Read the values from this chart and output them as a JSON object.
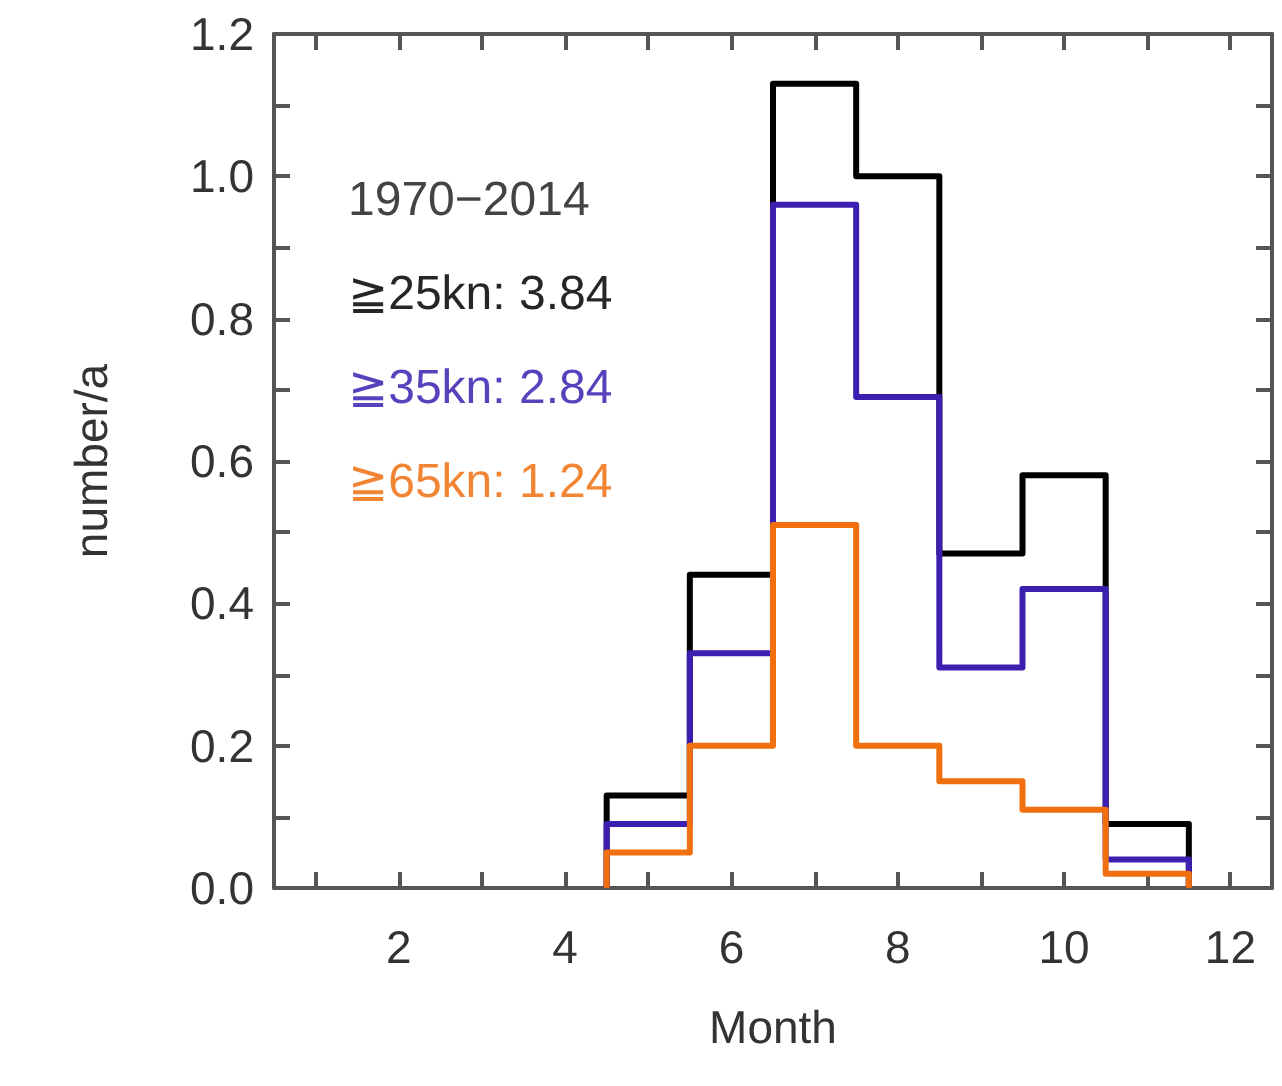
{
  "chart_data": {
    "type": "histogram",
    "xlabel": "Month",
    "ylabel": "number/a",
    "bins": [
      4.5,
      5.5,
      6.5,
      7.5,
      8.5,
      9.5,
      10.5,
      11.5
    ],
    "series": [
      {
        "name": "≧25kn: 3.84",
        "color": "#000000",
        "values": [
          0.13,
          0.44,
          1.13,
          1.0,
          0.47,
          0.58,
          0.09
        ]
      },
      {
        "name": "≧35kn: 2.84",
        "color": "#3c1fb0",
        "values": [
          0.09,
          0.33,
          0.96,
          0.69,
          0.31,
          0.42,
          0.04
        ]
      },
      {
        "name": "≧65kn: 1.24",
        "color": "#f07010",
        "values": [
          0.05,
          0.2,
          0.51,
          0.2,
          0.15,
          0.11,
          0.02
        ]
      }
    ],
    "legend": "top left",
    "legend_title": "1970−2014",
    "grid": false,
    "xlim": [
      0.5,
      12.5
    ],
    "xticks": [
      {
        "value": 1,
        "label": null
      },
      2,
      {
        "value": 3,
        "label": null
      },
      4,
      {
        "value": 5,
        "label": null
      },
      6,
      {
        "value": 7,
        "label": null
      },
      8,
      {
        "value": 9,
        "label": null
      },
      10,
      {
        "value": 11,
        "label": null
      },
      12
    ],
    "ylim": [
      0,
      1.2
    ],
    "yticks": [
      {
        "value": 0,
        "label": "0.0"
      },
      {
        "value": 0.1,
        "label": null
      },
      {
        "value": 0.2,
        "label": "0.2"
      },
      {
        "value": 0.3,
        "label": null
      },
      {
        "value": 0.4,
        "label": "0.4"
      },
      {
        "value": 0.5,
        "label": null
      },
      {
        "value": 0.6,
        "label": "0.6"
      },
      {
        "value": 0.7,
        "label": null
      },
      {
        "value": 0.8,
        "label": "0.8"
      },
      {
        "value": 0.9,
        "label": null
      },
      {
        "value": 1.0,
        "label": "1.0"
      },
      {
        "value": 1.1,
        "label": null
      },
      {
        "value": 1.2,
        "label": "1.2"
      }
    ]
  }
}
